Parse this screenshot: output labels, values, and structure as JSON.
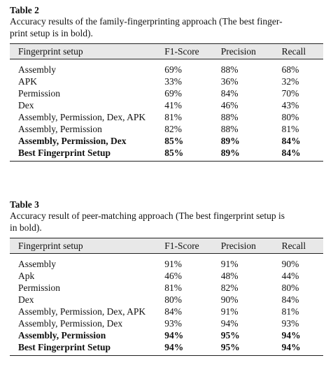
{
  "tables": [
    {
      "label": "Table 2",
      "caption": "Accuracy results of the family-fingerprinting approach (The best finger-print setup is in bold).",
      "caption_lines": [
        "Accuracy results of the family-fingerprinting approach (The best finger-",
        "print setup is in bold)."
      ],
      "headers": [
        "Fingerprint setup",
        "F1-Score",
        "Precision",
        "Recall"
      ],
      "rows": [
        {
          "setup": "Assembly",
          "f1": "69%",
          "precision": "88%",
          "recall": "68%",
          "bold": false
        },
        {
          "setup": "APK",
          "f1": "33%",
          "precision": "36%",
          "recall": "32%",
          "bold": false
        },
        {
          "setup": "Permission",
          "f1": "69%",
          "precision": "84%",
          "recall": "70%",
          "bold": false
        },
        {
          "setup": "Dex",
          "f1": "41%",
          "precision": "46%",
          "recall": "43%",
          "bold": false
        },
        {
          "setup": "Assembly, Permission, Dex, APK",
          "f1": "81%",
          "precision": "88%",
          "recall": "80%",
          "bold": false
        },
        {
          "setup": "Assembly, Permission",
          "f1": "82%",
          "precision": "88%",
          "recall": "81%",
          "bold": false
        },
        {
          "setup": "Assembly, Permission, Dex",
          "f1": "85%",
          "precision": "89%",
          "recall": "84%",
          "bold": true
        },
        {
          "setup": "Best Fingerprint Setup",
          "f1": "85%",
          "precision": "89%",
          "recall": "84%",
          "bold": true
        }
      ]
    },
    {
      "label": "Table 3",
      "caption": "Accuracy result of peer-matching approach (The best fingerprint setup is in bold).",
      "caption_lines": [
        "Accuracy result of peer-matching approach (The best fingerprint setup is",
        "in bold)."
      ],
      "headers": [
        "Fingerprint setup",
        "F1-Score",
        "Precision",
        "Recall"
      ],
      "rows": [
        {
          "setup": "Assembly",
          "f1": "91%",
          "precision": "91%",
          "recall": "90%",
          "bold": false
        },
        {
          "setup": "Apk",
          "f1": "46%",
          "precision": "48%",
          "recall": "44%",
          "bold": false
        },
        {
          "setup": "Permission",
          "f1": "81%",
          "precision": "82%",
          "recall": "80%",
          "bold": false
        },
        {
          "setup": "Dex",
          "f1": "80%",
          "precision": "90%",
          "recall": "84%",
          "bold": false
        },
        {
          "setup": "Assembly, Permission, Dex, APK",
          "f1": "84%",
          "precision": "91%",
          "recall": "81%",
          "bold": false
        },
        {
          "setup": "Assembly, Permission, Dex",
          "f1": "93%",
          "precision": "94%",
          "recall": "93%",
          "bold": false
        },
        {
          "setup": "Assembly, Permission",
          "f1": "94%",
          "precision": "95%",
          "recall": "94%",
          "bold": true
        },
        {
          "setup": "Best Fingerprint Setup",
          "f1": "94%",
          "precision": "95%",
          "recall": "94%",
          "bold": true
        }
      ]
    }
  ]
}
